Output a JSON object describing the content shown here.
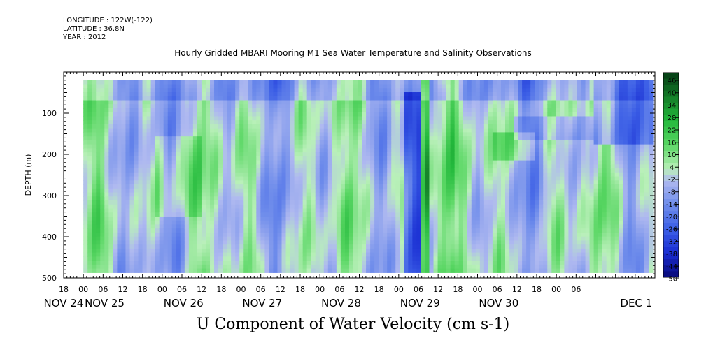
{
  "header": {
    "longitude": "LONGITUDE : 122W(-122)",
    "latitude": "LATITUDE : 36.8N",
    "year": "YEAR : 2012"
  },
  "chart_data": {
    "type": "heatmap",
    "title": "Hourly Gridded MBARI Mooring M1 Sea Water Temperature and Salinity Observations",
    "bottom_title": "U Component of Water Velocity (cm s-1)",
    "ylabel": "DEPTH (m)",
    "ylim": [
      500,
      0
    ],
    "yticks": [
      100,
      200,
      300,
      400,
      500
    ],
    "xlim_hours": [
      -6,
      174
    ],
    "x_hour_labels": [
      "18",
      "00",
      "06",
      "12",
      "18",
      "00",
      "06",
      "12",
      "18",
      "00",
      "06",
      "12",
      "18",
      "00",
      "06",
      "12",
      "18",
      "00",
      "06",
      "12",
      "18",
      "00",
      "06",
      "12",
      "18",
      "00",
      "06"
    ],
    "x_day_labels": [
      "NOV 24",
      "NOV 25",
      "NOV 26",
      "NOV 27",
      "NOV 28",
      "NOV 29",
      "NOV 30",
      "DEC 1"
    ],
    "colorbar": {
      "labels": [
        "46",
        "40",
        "34",
        "28",
        "22",
        "16",
        "10",
        "4",
        "-2",
        "-8",
        "-14",
        "-20",
        "-26",
        "-32",
        "-38",
        "-44",
        "-50"
      ],
      "min": -50,
      "max": 52
    }
  }
}
